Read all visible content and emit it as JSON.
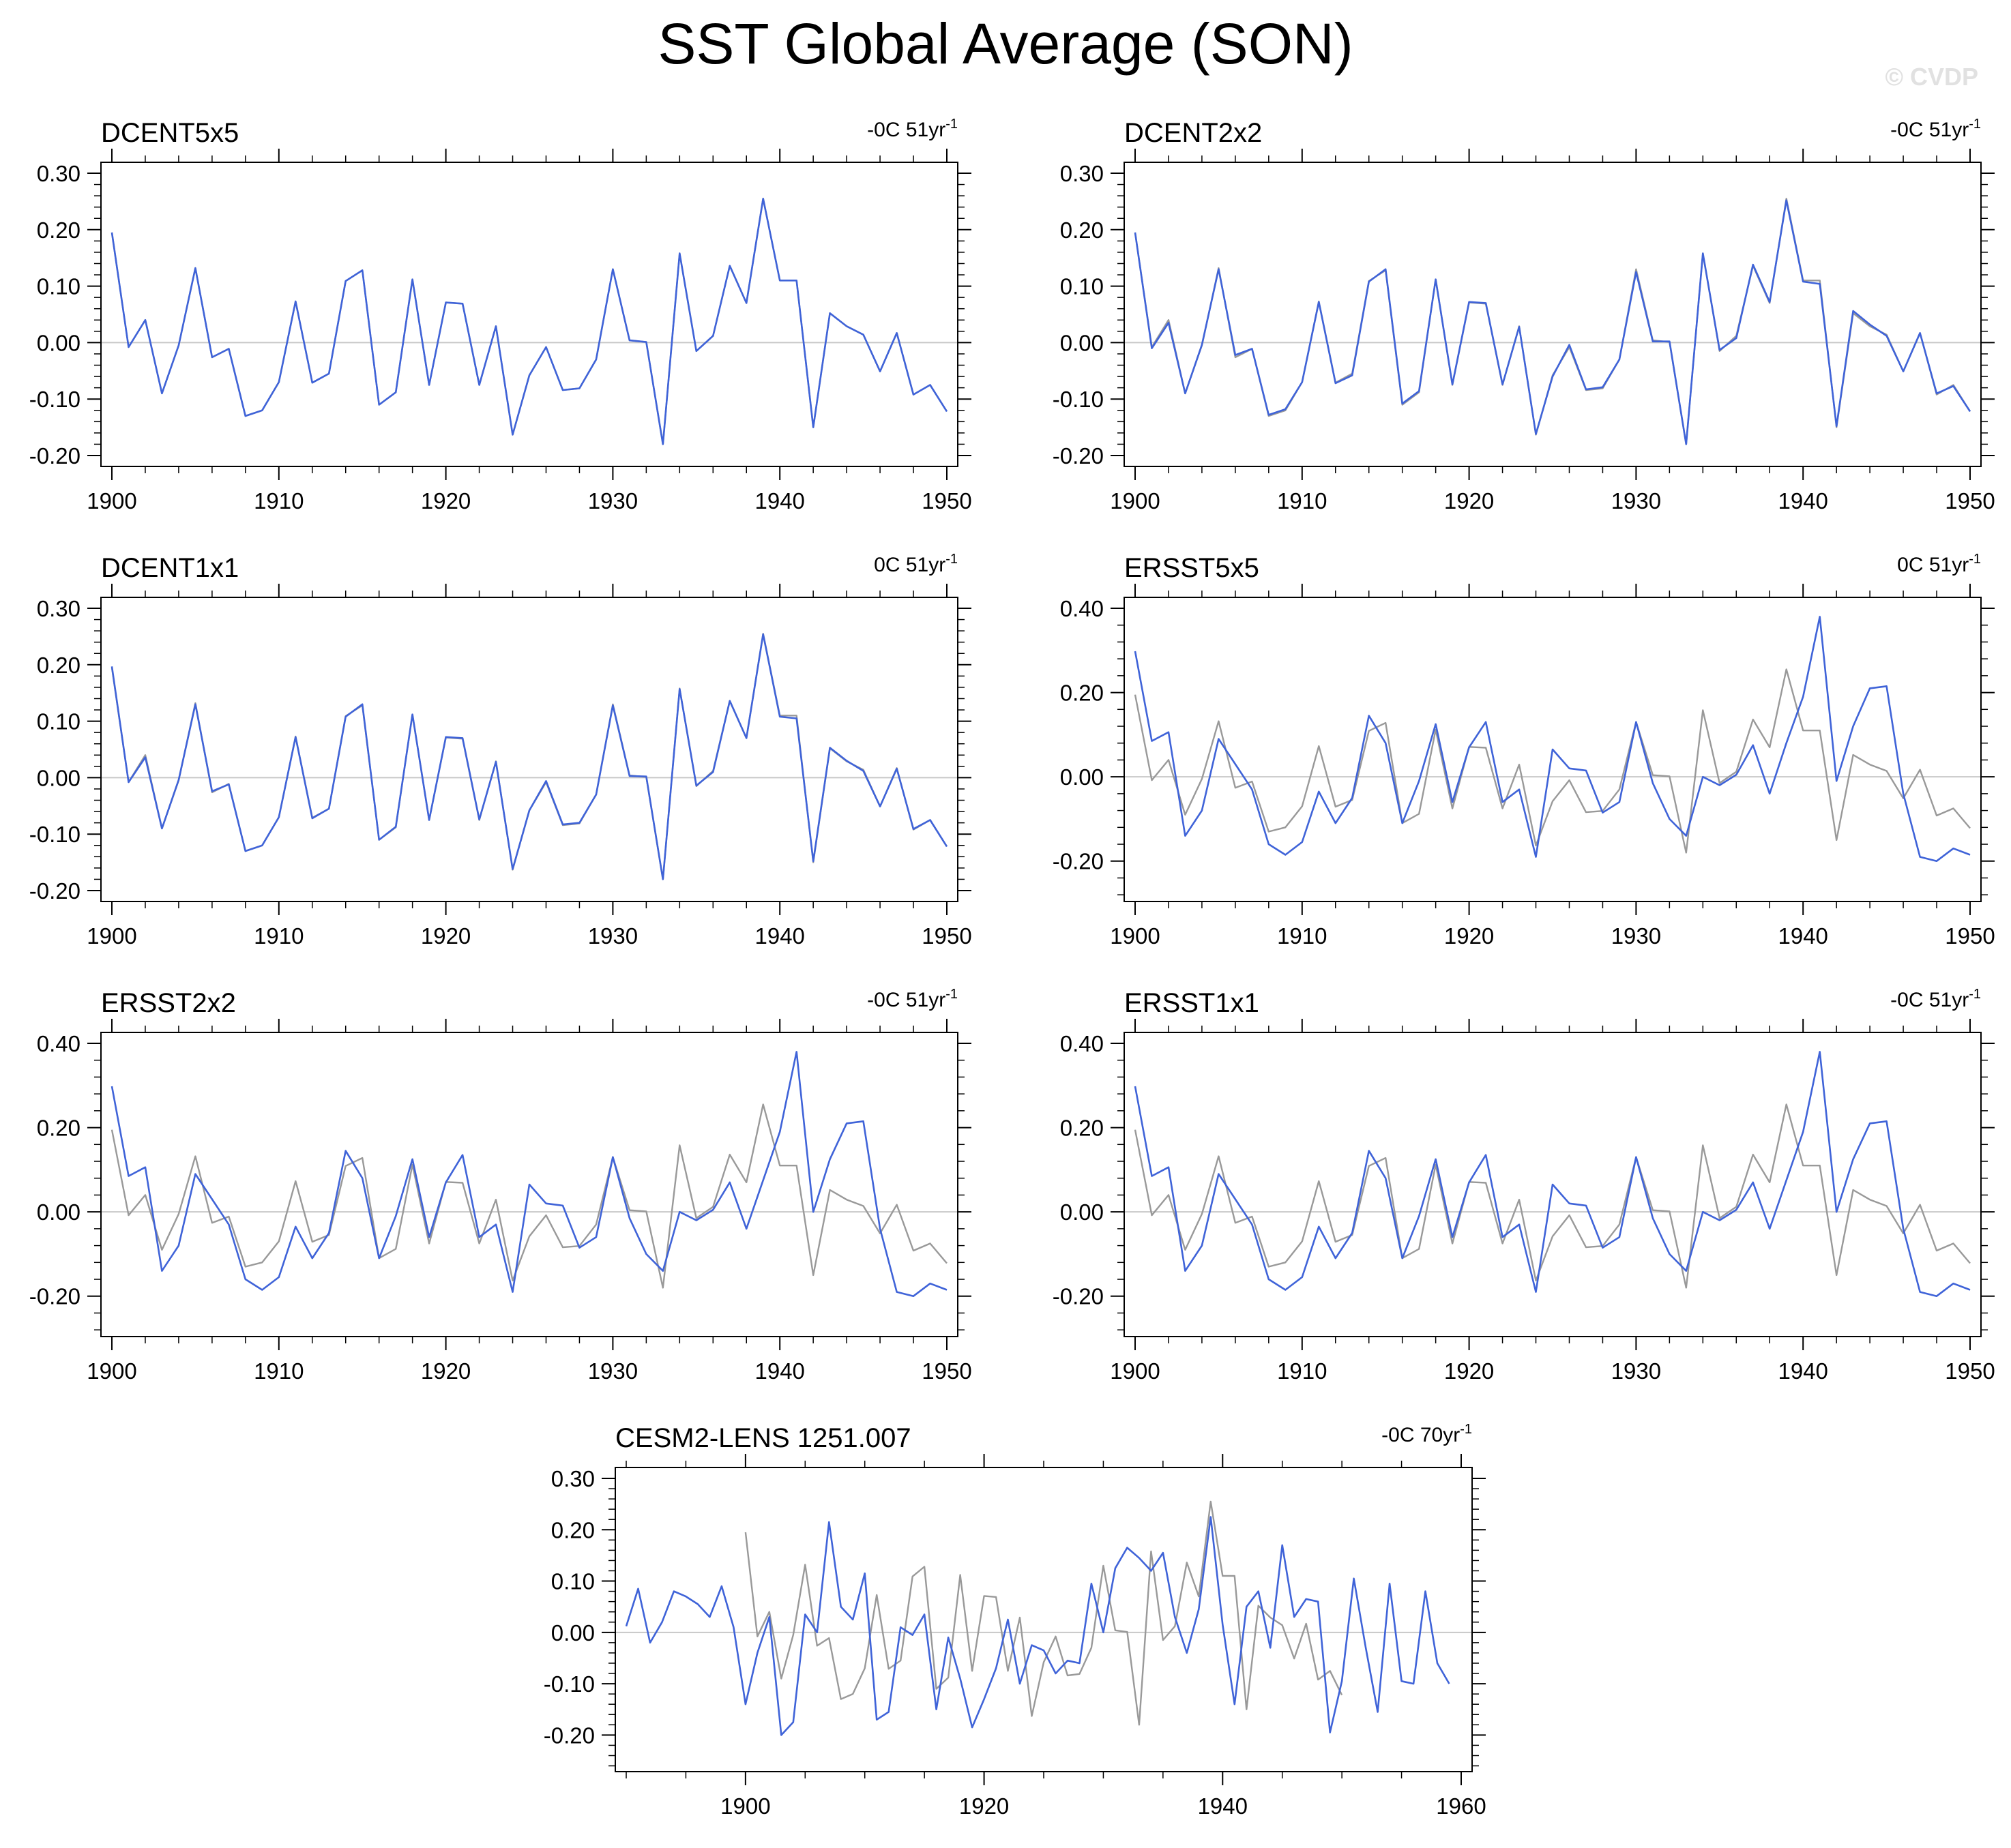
{
  "title": "SST Global Average (SON)",
  "watermark": "© CVDP",
  "colors": {
    "model": "#3f63d8",
    "reference": "#999999",
    "zero_line": "#c8c8c8",
    "axes": "#000000"
  },
  "chart_data": [
    {
      "type": "line",
      "title": "DCENT5x5",
      "trend": "-0C 51yr",
      "trend_exp": "-1",
      "xlim": [
        1900,
        1950
      ],
      "ylim": [
        -0.2,
        0.3
      ],
      "xticks": [
        1900,
        1910,
        1920,
        1930,
        1940,
        1950
      ],
      "yticks": [
        -0.2,
        -0.1,
        0.0,
        0.1,
        0.2,
        0.3
      ],
      "ytick_labels": [
        "-0.20",
        "-0.10",
        "0.00",
        "0.10",
        "0.20",
        "0.30"
      ],
      "series": [
        {
          "role": "reference",
          "x0": 1900,
          "values": [
            0.195,
            -0.008,
            0.04,
            -0.09,
            -0.005,
            0.132,
            -0.026,
            -0.011,
            -0.13,
            -0.12,
            -0.07,
            0.073,
            -0.071,
            -0.055,
            0.109,
            0.128,
            -0.11,
            -0.088,
            0.112,
            -0.075,
            0.071,
            0.069,
            -0.075,
            0.029,
            -0.163,
            -0.058,
            -0.008,
            -0.084,
            -0.081,
            -0.03,
            0.13,
            0.004,
            0.001,
            -0.18,
            0.158,
            -0.015,
            0.012,
            0.136,
            0.07,
            0.255,
            0.11,
            0.11,
            -0.15,
            0.052,
            0.029,
            0.014,
            -0.051,
            0.017,
            -0.092,
            -0.075,
            -0.122
          ]
        },
        {
          "role": "model",
          "x0": 1900,
          "values": [
            0.195,
            -0.008,
            0.04,
            -0.09,
            -0.005,
            0.132,
            -0.026,
            -0.011,
            -0.13,
            -0.12,
            -0.07,
            0.073,
            -0.071,
            -0.055,
            0.109,
            0.128,
            -0.11,
            -0.088,
            0.112,
            -0.075,
            0.071,
            0.069,
            -0.075,
            0.029,
            -0.163,
            -0.058,
            -0.008,
            -0.084,
            -0.081,
            -0.03,
            0.13,
            0.004,
            0.001,
            -0.18,
            0.158,
            -0.015,
            0.012,
            0.136,
            0.07,
            0.255,
            0.11,
            0.11,
            -0.15,
            0.052,
            0.029,
            0.014,
            -0.051,
            0.017,
            -0.092,
            -0.075,
            -0.122
          ]
        }
      ]
    },
    {
      "type": "line",
      "title": "DCENT2x2",
      "trend": "-0C 51yr",
      "trend_exp": "-1",
      "xlim": [
        1900,
        1950
      ],
      "ylim": [
        -0.2,
        0.3
      ],
      "xticks": [
        1900,
        1910,
        1920,
        1930,
        1940,
        1950
      ],
      "yticks": [
        -0.2,
        -0.1,
        0.0,
        0.1,
        0.2,
        0.3
      ],
      "ytick_labels": [
        "-0.20",
        "-0.10",
        "0.00",
        "0.10",
        "0.20",
        "0.30"
      ],
      "series": [
        {
          "role": "reference",
          "x0": 1900,
          "values": [
            0.195,
            -0.008,
            0.04,
            -0.09,
            -0.005,
            0.132,
            -0.026,
            -0.011,
            -0.13,
            -0.12,
            -0.07,
            0.073,
            -0.071,
            -0.055,
            0.109,
            0.128,
            -0.11,
            -0.088,
            0.112,
            -0.075,
            0.071,
            0.069,
            -0.075,
            0.029,
            -0.163,
            -0.058,
            -0.008,
            -0.084,
            -0.081,
            -0.03,
            0.13,
            0.004,
            0.001,
            -0.18,
            0.158,
            -0.015,
            0.012,
            0.136,
            0.07,
            0.255,
            0.11,
            0.11,
            -0.15,
            0.052,
            0.029,
            0.014,
            -0.051,
            0.017,
            -0.092,
            -0.075,
            -0.122
          ]
        },
        {
          "role": "model",
          "x0": 1900,
          "values": [
            0.195,
            -0.01,
            0.035,
            -0.09,
            -0.004,
            0.13,
            -0.022,
            -0.011,
            -0.128,
            -0.118,
            -0.07,
            0.072,
            -0.072,
            -0.058,
            0.108,
            0.13,
            -0.108,
            -0.086,
            0.112,
            -0.074,
            0.072,
            0.07,
            -0.074,
            0.028,
            -0.162,
            -0.06,
            -0.004,
            -0.083,
            -0.079,
            -0.03,
            0.125,
            0.002,
            0.002,
            -0.18,
            0.158,
            -0.013,
            0.008,
            0.138,
            0.072,
            0.252,
            0.108,
            0.104,
            -0.148,
            0.056,
            0.032,
            0.012,
            -0.051,
            0.017,
            -0.09,
            -0.077,
            -0.122
          ]
        }
      ]
    },
    {
      "type": "line",
      "title": "DCENT1x1",
      "trend": "0C 51yr",
      "trend_exp": "-1",
      "xlim": [
        1900,
        1950
      ],
      "ylim": [
        -0.2,
        0.3
      ],
      "xticks": [
        1900,
        1910,
        1920,
        1930,
        1940,
        1950
      ],
      "yticks": [
        -0.2,
        -0.1,
        0.0,
        0.1,
        0.2,
        0.3
      ],
      "ytick_labels": [
        "-0.20",
        "-0.10",
        "0.00",
        "0.10",
        "0.20",
        "0.30"
      ],
      "series": [
        {
          "role": "reference",
          "x0": 1900,
          "values": [
            0.195,
            -0.008,
            0.04,
            -0.09,
            -0.005,
            0.132,
            -0.026,
            -0.011,
            -0.13,
            -0.12,
            -0.07,
            0.073,
            -0.071,
            -0.055,
            0.109,
            0.128,
            -0.11,
            -0.088,
            0.112,
            -0.075,
            0.071,
            0.069,
            -0.075,
            0.029,
            -0.163,
            -0.058,
            -0.008,
            -0.084,
            -0.081,
            -0.03,
            0.13,
            0.004,
            0.001,
            -0.18,
            0.158,
            -0.015,
            0.012,
            0.136,
            0.07,
            0.255,
            0.11,
            0.11,
            -0.15,
            0.052,
            0.029,
            0.014,
            -0.051,
            0.017,
            -0.092,
            -0.075,
            -0.122
          ]
        },
        {
          "role": "model",
          "x0": 1900,
          "values": [
            0.197,
            -0.008,
            0.036,
            -0.09,
            -0.004,
            0.13,
            -0.024,
            -0.012,
            -0.13,
            -0.12,
            -0.07,
            0.072,
            -0.072,
            -0.055,
            0.108,
            0.13,
            -0.11,
            -0.087,
            0.112,
            -0.075,
            0.072,
            0.07,
            -0.074,
            0.028,
            -0.162,
            -0.058,
            -0.006,
            -0.083,
            -0.08,
            -0.03,
            0.128,
            0.003,
            0.002,
            -0.18,
            0.157,
            -0.014,
            0.01,
            0.136,
            0.07,
            0.254,
            0.108,
            0.105,
            -0.148,
            0.053,
            0.03,
            0.012,
            -0.051,
            0.016,
            -0.091,
            -0.075,
            -0.122
          ]
        }
      ]
    },
    {
      "type": "line",
      "title": "ERSST5x5",
      "trend": "0C 51yr",
      "trend_exp": "-1",
      "xlim": [
        1900,
        1950
      ],
      "ylim": [
        -0.27,
        0.4
      ],
      "xticks": [
        1900,
        1910,
        1920,
        1930,
        1940,
        1950
      ],
      "yticks": [
        -0.2,
        0.0,
        0.2,
        0.4
      ],
      "ytick_labels": [
        "-0.20",
        "0.00",
        "0.20",
        "0.40"
      ],
      "series": [
        {
          "role": "reference",
          "x0": 1900,
          "values": [
            0.195,
            -0.008,
            0.04,
            -0.09,
            -0.005,
            0.132,
            -0.026,
            -0.011,
            -0.13,
            -0.12,
            -0.07,
            0.073,
            -0.071,
            -0.055,
            0.109,
            0.128,
            -0.11,
            -0.088,
            0.112,
            -0.075,
            0.071,
            0.069,
            -0.075,
            0.029,
            -0.163,
            -0.058,
            -0.008,
            -0.084,
            -0.081,
            -0.03,
            0.13,
            0.004,
            0.001,
            -0.18,
            0.158,
            -0.015,
            0.012,
            0.136,
            0.07,
            0.255,
            0.11,
            0.11,
            -0.15,
            0.052,
            0.029,
            0.014,
            -0.051,
            0.017,
            -0.092,
            -0.075,
            -0.122
          ]
        },
        {
          "role": "model",
          "x0": 1900,
          "values": [
            0.298,
            0.085,
            0.106,
            -0.14,
            -0.08,
            0.09,
            0.03,
            -0.03,
            -0.16,
            -0.185,
            -0.155,
            -0.035,
            -0.11,
            -0.05,
            0.145,
            0.08,
            -0.11,
            -0.01,
            0.125,
            -0.06,
            0.07,
            0.13,
            -0.06,
            -0.03,
            -0.19,
            0.065,
            0.02,
            0.015,
            -0.085,
            -0.06,
            0.13,
            -0.015,
            -0.1,
            -0.14,
            0.0,
            -0.02,
            0.005,
            0.075,
            -0.04,
            0.08,
            0.19,
            0.38,
            -0.01,
            0.12,
            0.21,
            0.215,
            -0.04,
            -0.19,
            -0.2,
            -0.17,
            -0.185
          ]
        }
      ]
    },
    {
      "type": "line",
      "title": "ERSST2x2",
      "trend": "-0C 51yr",
      "trend_exp": "-1",
      "xlim": [
        1900,
        1950
      ],
      "ylim": [
        -0.27,
        0.4
      ],
      "xticks": [
        1900,
        1910,
        1920,
        1930,
        1940,
        1950
      ],
      "yticks": [
        -0.2,
        0.0,
        0.2,
        0.4
      ],
      "ytick_labels": [
        "-0.20",
        "0.00",
        "0.20",
        "0.40"
      ],
      "series": [
        {
          "role": "reference",
          "x0": 1900,
          "values": [
            0.195,
            -0.008,
            0.04,
            -0.09,
            -0.005,
            0.132,
            -0.026,
            -0.011,
            -0.13,
            -0.12,
            -0.07,
            0.073,
            -0.071,
            -0.055,
            0.109,
            0.128,
            -0.11,
            -0.088,
            0.112,
            -0.075,
            0.071,
            0.069,
            -0.075,
            0.029,
            -0.163,
            -0.058,
            -0.008,
            -0.084,
            -0.081,
            -0.03,
            0.13,
            0.004,
            0.001,
            -0.18,
            0.158,
            -0.015,
            0.012,
            0.136,
            0.07,
            0.255,
            0.11,
            0.11,
            -0.15,
            0.052,
            0.029,
            0.014,
            -0.051,
            0.017,
            -0.092,
            -0.075,
            -0.122
          ]
        },
        {
          "role": "model",
          "x0": 1900,
          "values": [
            0.298,
            0.085,
            0.106,
            -0.14,
            -0.08,
            0.09,
            0.03,
            -0.03,
            -0.16,
            -0.185,
            -0.155,
            -0.035,
            -0.11,
            -0.05,
            0.145,
            0.08,
            -0.11,
            -0.01,
            0.125,
            -0.06,
            0.07,
            0.135,
            -0.06,
            -0.03,
            -0.19,
            0.065,
            0.02,
            0.015,
            -0.085,
            -0.06,
            0.13,
            -0.015,
            -0.1,
            -0.14,
            0.0,
            -0.02,
            0.005,
            0.07,
            -0.04,
            0.075,
            0.19,
            0.38,
            0.0,
            0.125,
            0.21,
            0.215,
            -0.04,
            -0.19,
            -0.2,
            -0.17,
            -0.185
          ]
        }
      ]
    },
    {
      "type": "line",
      "title": "ERSST1x1",
      "trend": "-0C 51yr",
      "trend_exp": "-1",
      "xlim": [
        1900,
        1950
      ],
      "ylim": [
        -0.27,
        0.4
      ],
      "xticks": [
        1900,
        1910,
        1920,
        1930,
        1940,
        1950
      ],
      "yticks": [
        -0.2,
        0.0,
        0.2,
        0.4
      ],
      "ytick_labels": [
        "-0.20",
        "0.00",
        "0.20",
        "0.40"
      ],
      "series": [
        {
          "role": "reference",
          "x0": 1900,
          "values": [
            0.195,
            -0.008,
            0.04,
            -0.09,
            -0.005,
            0.132,
            -0.026,
            -0.011,
            -0.13,
            -0.12,
            -0.07,
            0.073,
            -0.071,
            -0.055,
            0.109,
            0.128,
            -0.11,
            -0.088,
            0.112,
            -0.075,
            0.071,
            0.069,
            -0.075,
            0.029,
            -0.163,
            -0.058,
            -0.008,
            -0.084,
            -0.081,
            -0.03,
            0.13,
            0.004,
            0.001,
            -0.18,
            0.158,
            -0.015,
            0.012,
            0.136,
            0.07,
            0.255,
            0.11,
            0.11,
            -0.15,
            0.052,
            0.029,
            0.014,
            -0.051,
            0.017,
            -0.092,
            -0.075,
            -0.122
          ]
        },
        {
          "role": "model",
          "x0": 1900,
          "values": [
            0.298,
            0.085,
            0.106,
            -0.14,
            -0.08,
            0.09,
            0.03,
            -0.03,
            -0.16,
            -0.185,
            -0.155,
            -0.035,
            -0.11,
            -0.05,
            0.145,
            0.08,
            -0.11,
            -0.01,
            0.125,
            -0.06,
            0.07,
            0.135,
            -0.06,
            -0.03,
            -0.19,
            0.065,
            0.02,
            0.015,
            -0.085,
            -0.06,
            0.13,
            -0.015,
            -0.1,
            -0.14,
            0.0,
            -0.02,
            0.005,
            0.07,
            -0.04,
            0.075,
            0.19,
            0.38,
            0.0,
            0.125,
            0.21,
            0.215,
            -0.04,
            -0.19,
            -0.2,
            -0.17,
            -0.185
          ]
        }
      ]
    },
    {
      "type": "line",
      "title": "CESM2-LENS 1251.007",
      "trend": "-0C 70yr",
      "trend_exp": "-1",
      "xlim": [
        1890,
        1960
      ],
      "ylim": [
        -0.25,
        0.3
      ],
      "xticks": [
        1900,
        1920,
        1940,
        1960
      ],
      "yticks": [
        -0.2,
        -0.1,
        0.0,
        0.1,
        0.2,
        0.3
      ],
      "ytick_labels": [
        "-0.20",
        "-0.10",
        "0.00",
        "0.10",
        "0.20",
        "0.30"
      ],
      "series": [
        {
          "role": "reference",
          "x0": 1900,
          "values": [
            0.195,
            -0.008,
            0.04,
            -0.09,
            -0.005,
            0.132,
            -0.026,
            -0.011,
            -0.13,
            -0.12,
            -0.07,
            0.073,
            -0.071,
            -0.055,
            0.109,
            0.128,
            -0.11,
            -0.088,
            0.112,
            -0.075,
            0.071,
            0.069,
            -0.075,
            0.029,
            -0.163,
            -0.058,
            -0.008,
            -0.084,
            -0.081,
            -0.03,
            0.13,
            0.004,
            0.001,
            -0.18,
            0.158,
            -0.015,
            0.012,
            0.136,
            0.07,
            0.255,
            0.11,
            0.11,
            -0.15,
            0.052,
            0.029,
            0.014,
            -0.051,
            0.017,
            -0.092,
            -0.075,
            -0.122
          ]
        },
        {
          "role": "model",
          "x0": 1890,
          "values": [
            0.012,
            0.085,
            -0.02,
            0.02,
            0.08,
            0.07,
            0.055,
            0.03,
            0.09,
            0.01,
            -0.14,
            -0.04,
            0.03,
            -0.2,
            -0.175,
            0.035,
            0.0,
            0.215,
            0.05,
            0.025,
            0.115,
            -0.17,
            -0.155,
            0.01,
            -0.005,
            0.035,
            -0.15,
            -0.01,
            -0.09,
            -0.185,
            -0.13,
            -0.07,
            0.025,
            -0.1,
            -0.025,
            -0.035,
            -0.08,
            -0.055,
            -0.06,
            0.095,
            0.0,
            0.125,
            0.165,
            0.145,
            0.12,
            0.155,
            0.03,
            -0.04,
            0.045,
            0.225,
            0.015,
            -0.14,
            0.05,
            0.08,
            -0.03,
            0.17,
            0.03,
            0.065,
            0.06,
            -0.195,
            -0.095,
            0.105,
            -0.03,
            -0.155,
            0.095,
            -0.095,
            -0.1,
            0.08,
            -0.06,
            -0.1
          ]
        }
      ]
    }
  ]
}
